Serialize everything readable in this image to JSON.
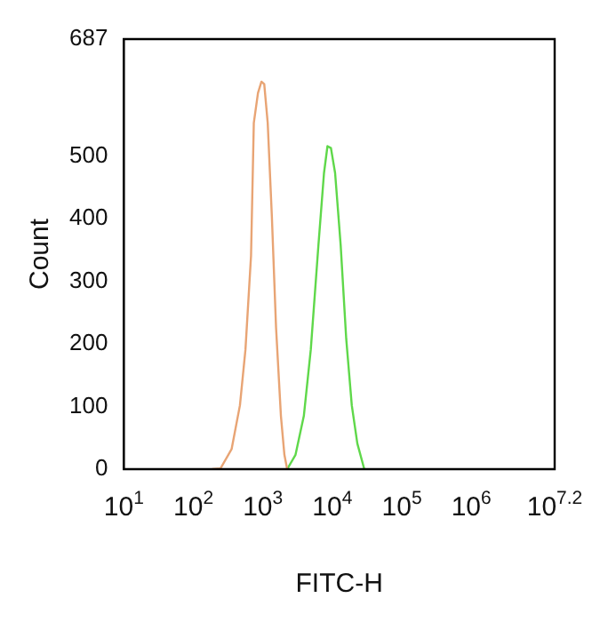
{
  "chart_data": {
    "type": "line",
    "xlabel": "FITC-H",
    "ylabel": "Count",
    "log": "x",
    "xlim": [
      10,
      15848932
    ],
    "xticks": [
      {
        "value": 10,
        "label": "10$^{1}$"
      },
      {
        "value": 100,
        "label": "10$^{2}$"
      },
      {
        "value": 1000,
        "label": "10$^{3}$"
      },
      {
        "value": 10000,
        "label": "10$^{4}$"
      },
      {
        "value": 100000,
        "label": "10$^{5}$"
      },
      {
        "value": 1000000,
        "label": "10$^{6}$"
      },
      {
        "value": 15848932,
        "label": "10$^{7.2}$"
      }
    ],
    "ylim": [
      0,
      687
    ],
    "yticks": [
      0,
      100,
      200,
      300,
      400,
      500,
      687
    ],
    "grid": false,
    "legend": false,
    "marker": "none",
    "line_style": "solid",
    "series": [
      {
        "color": "#e8a474",
        "x": [
          186,
          245,
          355,
          468,
          562,
          676,
          741,
          851,
          955,
          1047,
          1175,
          1349,
          1549,
          1820,
          2042,
          2239
        ],
        "values": [
          0,
          1,
          32,
          102,
          191,
          341,
          553,
          601,
          619,
          615,
          553,
          403,
          226,
          85,
          23,
          0
        ]
      },
      {
        "color": "#5fd84a",
        "x": [
          2239,
          2951,
          3890,
          4898,
          6310,
          7586,
          8511,
          9550,
          10965,
          13183,
          15849,
          19055,
          22909,
          28840
        ],
        "values": [
          0,
          23,
          85,
          191,
          358,
          473,
          516,
          513,
          473,
          358,
          208,
          102,
          41,
          0
        ]
      }
    ]
  }
}
